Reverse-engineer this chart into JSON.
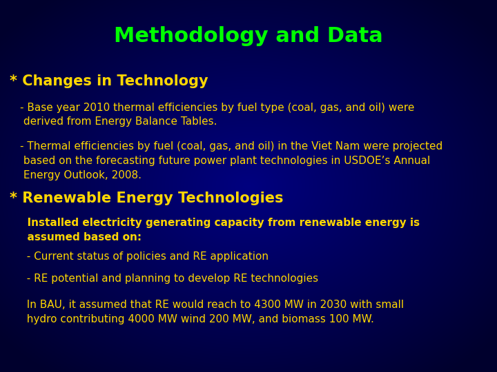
{
  "title": "Methodology and Data",
  "title_color": "#00ff00",
  "title_fontsize": 22,
  "background_color": "#000080",
  "section1_header": "* Changes in Technology",
  "section1_header_color": "#FFD700",
  "section1_header_fontsize": 15,
  "section1_text1": "- Base year 2010 thermal efficiencies by fuel type (coal, gas, and oil) were\n derived from Energy Balance Tables.",
  "section1_text2": "- Thermal efficiencies by fuel (coal, gas, and oil) in the Viet Nam were projected\n based on the forecasting future power plant technologies in USDOE’s Annual\n Energy Outlook, 2008.",
  "section2_header": "* Renewable Energy Technologies",
  "section2_header_color": "#FFD700",
  "section2_header_fontsize": 15,
  "section2_bold": "  Installed electricity generating capacity from renewable energy is\n  assumed based on:",
  "section2_text1": "  - Current status of policies and RE application",
  "section2_text2": "  - RE potential and planning to develop RE technologies",
  "section2_text3": "  In BAU, it assumed that RE would reach to 4300 MW in 2030 with small\n  hydro contributing 4000 MW wind 200 MW, and biomass 100 MW.",
  "body_text_color": "#FFD700",
  "body_fontsize": 11,
  "bold_fontsize": 11
}
